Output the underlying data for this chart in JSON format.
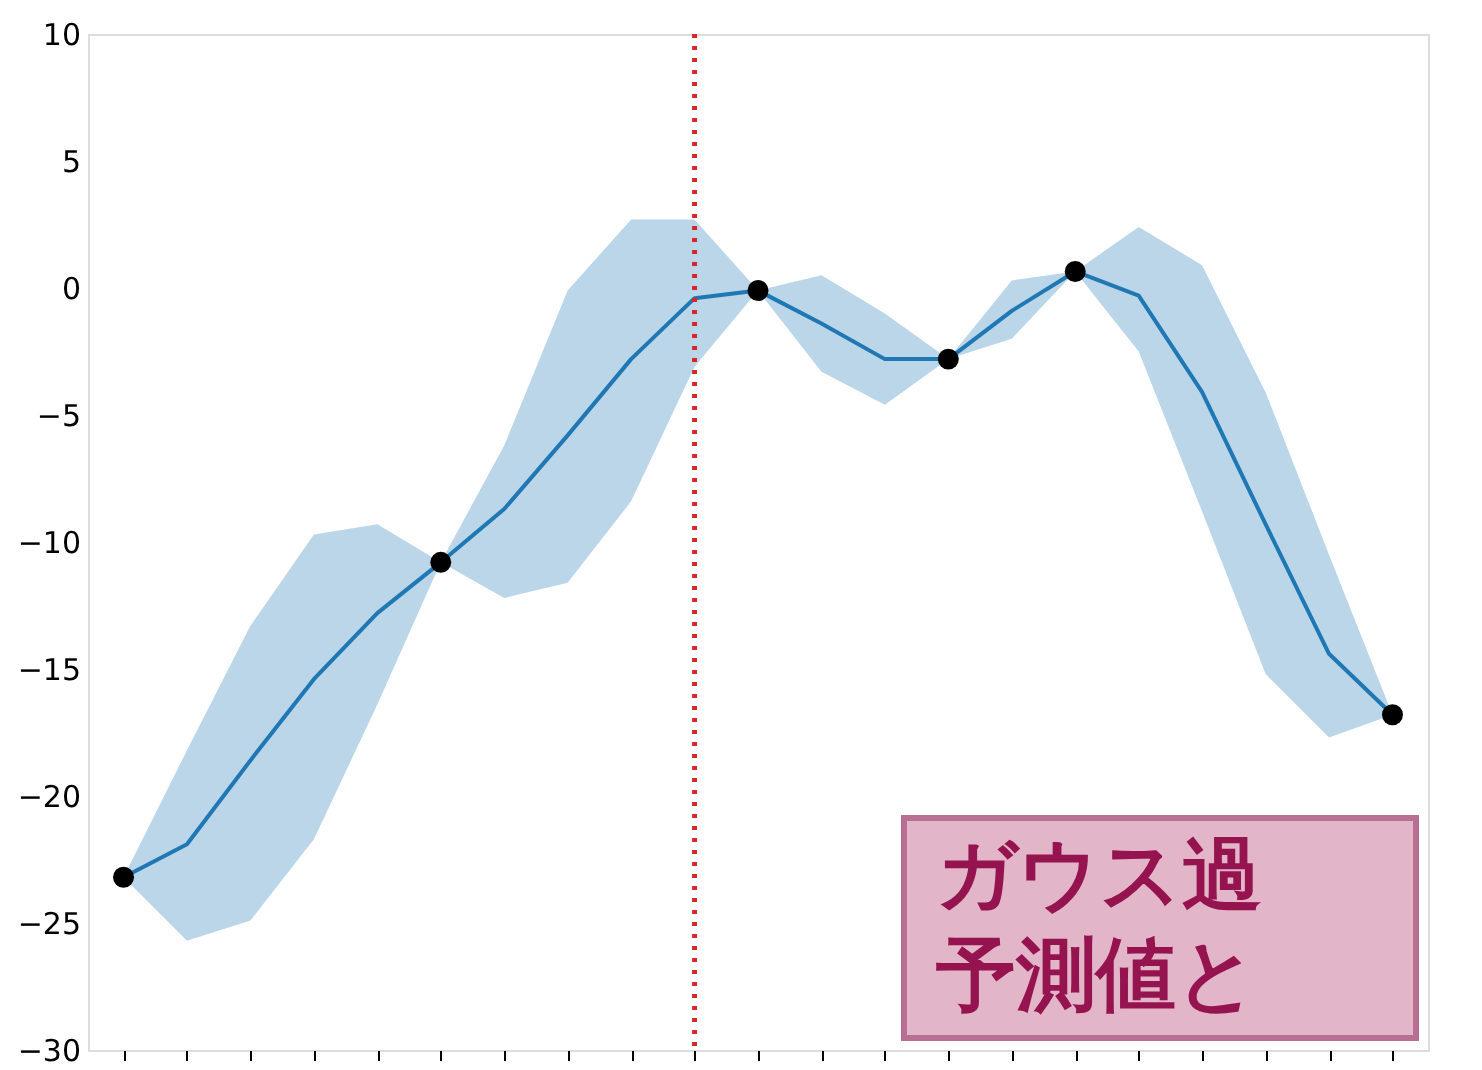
{
  "chart_data": {
    "type": "line",
    "categories": [
      null,
      null,
      null,
      null,
      null,
      null,
      null,
      null,
      null,
      null,
      null,
      null,
      null,
      null,
      null,
      null,
      null,
      null,
      null,
      null,
      null
    ],
    "series": [
      {
        "color": "#1f77b4",
        "values": [
          -23.2,
          -21.9,
          -18.6,
          -15.4,
          -12.8,
          -10.8,
          -8.7,
          -5.8,
          -2.8,
          -0.4,
          -0.1,
          -1.4,
          -2.8,
          -2.8,
          -0.9,
          0.65,
          -0.3,
          -4.1,
          -9.3,
          -14.4,
          -16.8
        ],
        "lower": [
          -23.2,
          -25.7,
          -24.9,
          -21.7,
          -16.4,
          -10.8,
          -12.2,
          -11.6,
          -8.4,
          -3.1,
          -0.1,
          -3.3,
          -4.6,
          -2.8,
          -2.0,
          0.65,
          -2.5,
          -8.8,
          -15.2,
          -17.7,
          -16.8
        ],
        "upper": [
          -23.2,
          -18.2,
          -13.3,
          -9.7,
          -9.3,
          -10.8,
          -6.2,
          -0.1,
          2.7,
          2.7,
          -0.1,
          0.5,
          -1.0,
          -2.8,
          0.3,
          0.65,
          2.4,
          0.9,
          -4.1,
          -10.5,
          -16.8
        ]
      },
      {
        "type": "scatter",
        "color": "#000000",
        "marker": "circle",
        "values": [
          -23.2,
          null,
          null,
          null,
          null,
          -10.8,
          null,
          null,
          null,
          null,
          -0.1,
          null,
          null,
          -2.8,
          null,
          0.65,
          null,
          null,
          null,
          null,
          -16.8
        ]
      }
    ],
    "ylim": [
      -30,
      10
    ],
    "yticks": [
      -30,
      -25,
      -20,
      -15,
      -10,
      -5,
      0,
      5,
      10
    ],
    "annotations": [
      "ガウス過",
      "予測値と"
    ],
    "tick_labels": "y",
    "grid": false
  }
}
